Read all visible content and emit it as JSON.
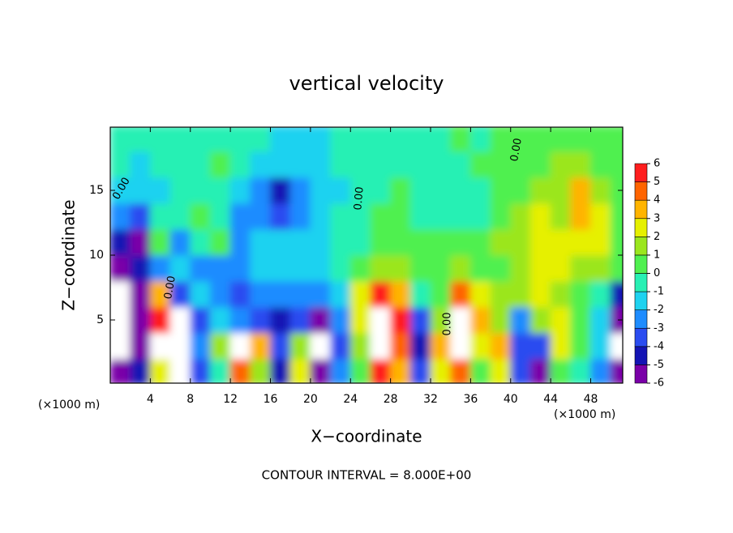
{
  "chart_data": {
    "type": "contour",
    "title": "vertical velocity",
    "xlabel": "X−coordinate",
    "ylabel": "Z−coordinate",
    "x_unit_label_left": "(×1000 m)",
    "x_unit_label_right": "(×1000 m)",
    "footer": "CONTOUR INTERVAL = 8.000E+00",
    "contour_labels": [
      "0.00",
      "0.00",
      "0.00",
      "0.00",
      "0.00"
    ],
    "xlim": [
      0,
      51.2
    ],
    "ylim": [
      0.125,
      19.875
    ],
    "xticks": [
      4,
      8,
      12,
      16,
      20,
      24,
      28,
      32,
      36,
      40,
      44,
      48
    ],
    "yticks": [
      5,
      10,
      15
    ],
    "x": [
      1,
      3,
      5,
      7,
      9,
      11,
      13,
      15,
      17,
      19,
      21,
      23,
      25,
      27,
      29,
      31,
      33,
      35,
      37,
      39,
      41,
      43,
      45,
      47,
      49,
      51
    ],
    "z": [
      1,
      3,
      5,
      7,
      9,
      11,
      13,
      15,
      17,
      19
    ],
    "values": [
      [
        -5,
        -4,
        3,
        -7,
        -3,
        0,
        5,
        2,
        -4,
        3,
        -6,
        -2,
        1,
        6,
        4,
        -3,
        3,
        5,
        1,
        3,
        -3,
        -5,
        1,
        0,
        -2,
        -6
      ],
      [
        -7,
        -5,
        7,
        -7,
        -2,
        2,
        7,
        4,
        -3,
        2,
        -7,
        -3,
        2,
        7,
        5,
        -4,
        4,
        7,
        3,
        4,
        -3,
        -3,
        3,
        1,
        -1,
        -7
      ],
      [
        -7,
        -5,
        6,
        -7,
        -3,
        -1,
        -2,
        -3,
        -4,
        -3,
        -6,
        -2,
        3,
        7,
        6,
        -3,
        2,
        7,
        4,
        2,
        -2,
        2,
        3,
        1,
        -1,
        -6
      ],
      [
        -7,
        -5,
        4,
        -3,
        -1,
        -2,
        -3,
        -2,
        -2,
        -2,
        -2,
        -1,
        3,
        6,
        4,
        0,
        1,
        5,
        3,
        2,
        2,
        3,
        2,
        1,
        0,
        -4
      ],
      [
        -5,
        -4,
        -2,
        -1,
        -2,
        -2,
        -2,
        -1,
        -1,
        -1,
        -1,
        0,
        1,
        2,
        2,
        1,
        1,
        2,
        1,
        1,
        2,
        3,
        3,
        2,
        2,
        1
      ],
      [
        -4,
        -6,
        1,
        -2,
        0,
        1,
        -2,
        -1,
        -1,
        -1,
        -1,
        0,
        0,
        1,
        1,
        1,
        1,
        1,
        1,
        2,
        2,
        3,
        3,
        3,
        3,
        1
      ],
      [
        -2,
        -3,
        0,
        0,
        1,
        0,
        -2,
        -2,
        -3,
        -2,
        -1,
        0,
        0,
        1,
        1,
        0,
        0,
        0,
        0,
        1,
        2,
        3,
        2,
        4,
        3,
        1
      ],
      [
        -1,
        -1,
        -1,
        0,
        0,
        0,
        -1,
        -2,
        -4,
        -2,
        -1,
        -1,
        0,
        0,
        1,
        0,
        0,
        0,
        0,
        1,
        1,
        2,
        2,
        4,
        2,
        1
      ],
      [
        0,
        -1,
        0,
        0,
        0,
        1,
        0,
        -1,
        -1,
        -1,
        -1,
        0,
        0,
        0,
        0,
        0,
        0,
        0,
        1,
        1,
        1,
        1,
        2,
        2,
        1,
        1
      ],
      [
        0,
        0,
        0,
        0,
        0,
        0,
        0,
        0,
        -1,
        -1,
        -1,
        0,
        0,
        0,
        0,
        0,
        0,
        1,
        0,
        1,
        1,
        1,
        1,
        1,
        1,
        1
      ]
    ],
    "colorbar": {
      "ticks": [
        -6,
        -5,
        -4,
        -3,
        -2,
        -1,
        0,
        1,
        2,
        3,
        4,
        5,
        6
      ],
      "colors": [
        "#7a00a8",
        "#1414b4",
        "#2a4cf0",
        "#1e8cff",
        "#1ed2f0",
        "#28f0b4",
        "#50f050",
        "#9be61e",
        "#e6f000",
        "#ffb400",
        "#ff6400",
        "#ff1e1e"
      ],
      "beyond_color": "#ffffff"
    }
  }
}
